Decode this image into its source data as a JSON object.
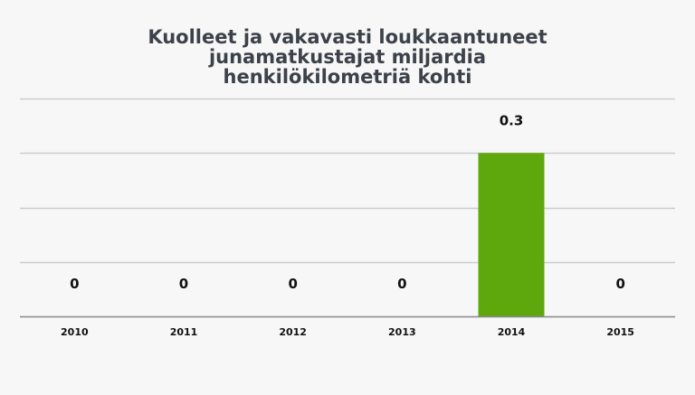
{
  "chart_data": {
    "type": "bar",
    "title_lines": [
      "Kuolleet ja vakavasti loukkaantuneet",
      "junamatkustajat miljardia",
      "henkilökilometriä kohti"
    ],
    "categories": [
      "2010",
      "2011",
      "2012",
      "2013",
      "2014",
      "2015"
    ],
    "values": [
      0,
      0,
      0,
      0,
      0.3,
      0
    ],
    "data_labels": [
      "0",
      "0",
      "0",
      "0",
      "0.3",
      "0"
    ],
    "ylim": [
      0,
      0.4
    ],
    "grid": true,
    "y_tick_labels_visible": false,
    "bar_color": "#5ea80d",
    "grid_color": "#cccccc",
    "axis_color": "#888888",
    "title_color": "#3d4149"
  }
}
